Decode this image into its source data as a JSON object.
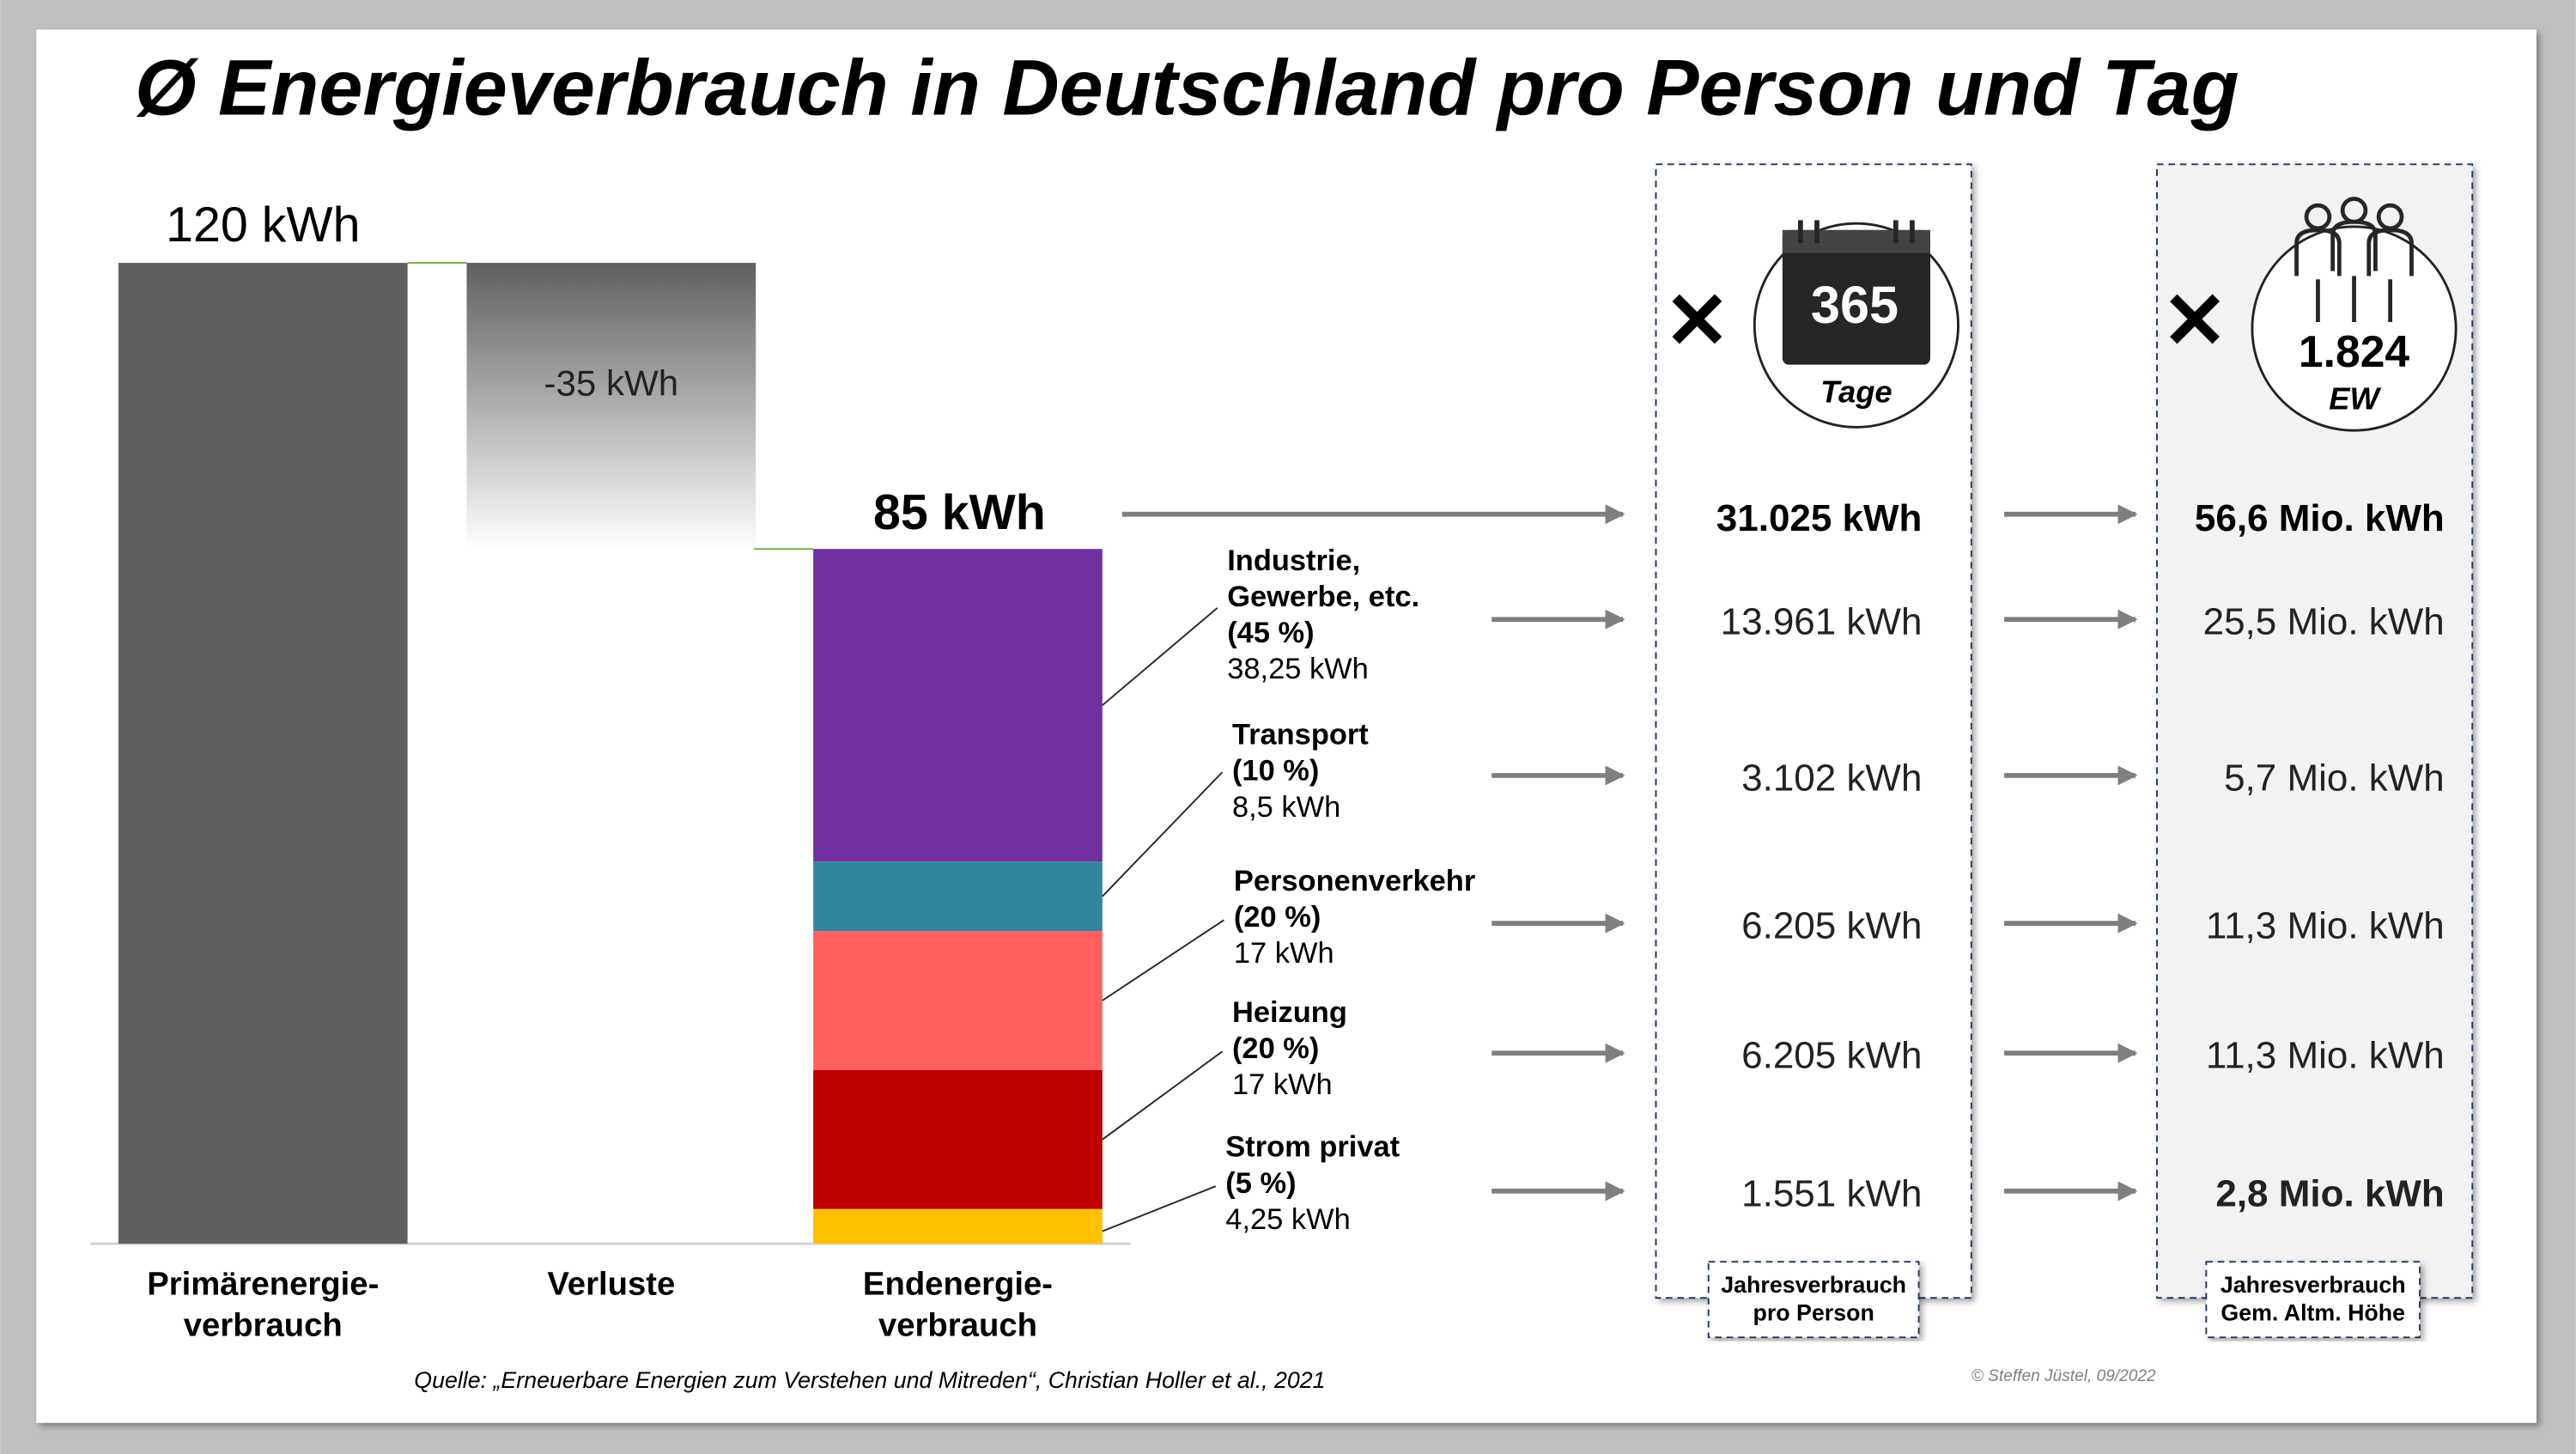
{
  "chart_data": {
    "type": "waterfall",
    "title": "Ø Energieverbrauch in Deutschland pro Person und Tag",
    "categories": [
      "Primärenergie- verbrauch",
      "Verluste",
      "Endenergie- verbrauch"
    ],
    "values": [
      120,
      -35,
      85
    ],
    "value_labels": [
      "120 kWh",
      "-35 kWh",
      "85 kWh"
    ],
    "color": "#5f5f5f",
    "series": [
      {
        "name": "Industrie, Gewerbe, etc.",
        "share_label": "(45 %)",
        "value": 38.25,
        "value_label": "38,25 kWh",
        "color": "#7030a0"
      },
      {
        "name": "Transport",
        "share_label": "(10 %)",
        "value": 8.5,
        "value_label": "8,5 kWh",
        "color": "#31869b"
      },
      {
        "name": "Personenverkehr",
        "share_label": "(20 %)",
        "value": 17,
        "value_label": "17 kWh",
        "color": "#ff5f5f"
      },
      {
        "name": "Heizung",
        "share_label": "(20 %)",
        "value": 17,
        "value_label": "17 kWh",
        "color": "#c00000"
      },
      {
        "name": "Strom privat",
        "share_label": "(5 %)",
        "value": 4.25,
        "value_label": "4,25 kWh",
        "color": "#ffc000"
      }
    ]
  },
  "per_person": {
    "multiplier": "365",
    "unit": "Tage",
    "total": "31.025 kWh",
    "rows": [
      "13.961 kWh",
      "3.102 kWh",
      "6.205 kWh",
      "6.205 kWh",
      "1.551 kWh"
    ],
    "caption": [
      "Jahresverbrauch",
      "pro Person"
    ]
  },
  "community": {
    "multiplier": "1.824",
    "unit": "EW",
    "total": "56,6 Mio. kWh",
    "rows": [
      "25,5 Mio. kWh",
      "5,7 Mio. kWh",
      "11,3 Mio. kWh",
      "11,3 Mio. kWh",
      "2,8 Mio. kWh"
    ],
    "caption": [
      "Jahresverbrauch",
      "Gem. Altm. Höhe"
    ]
  },
  "source": "Quelle: „Erneuerbare Energien zum Verstehen und Mitreden“, Christian Holler et al., 2021",
  "copyright": "© Steffen Jüstel, 09/2022"
}
